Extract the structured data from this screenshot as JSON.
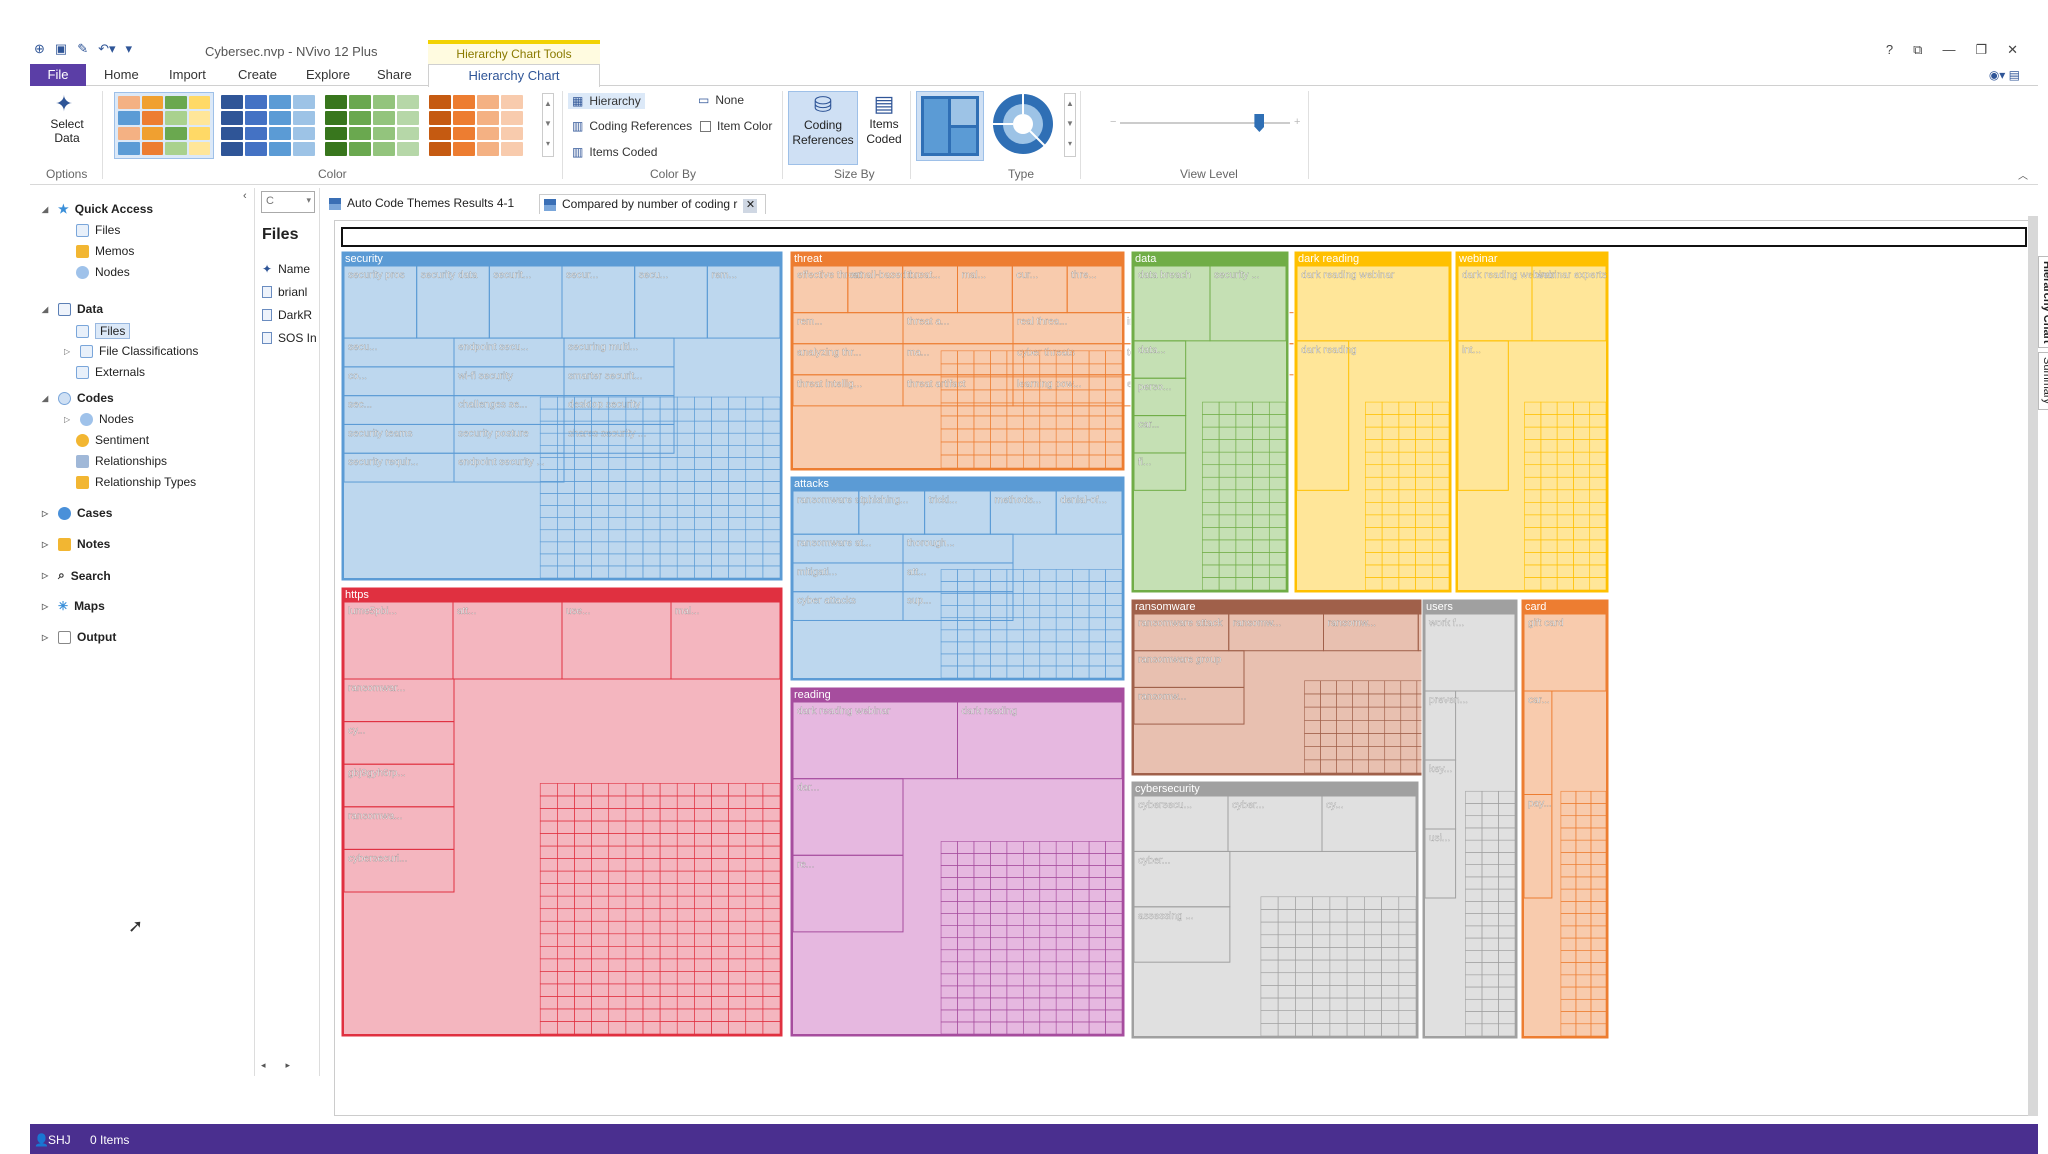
{
  "window": {
    "title": "Cybersec.nvp - NVivo 12 Plus",
    "context_title": "Hierarchy Chart Tools",
    "controls": [
      "?",
      "⧉",
      "—",
      "❐",
      "✕"
    ]
  },
  "ribbon_tabs": {
    "file": "File",
    "tabs": [
      "Home",
      "Import",
      "Create",
      "Explore",
      "Share"
    ],
    "active": "Hierarchy Chart"
  },
  "ribbon": {
    "options": {
      "label": "Select Data",
      "group": "Options"
    },
    "color": {
      "group": "Color",
      "palettes": [
        [
          "#f4b183",
          "#f0a030",
          "#6aa84f",
          "#ffd966",
          "#5b9bd5",
          "#ed7d31",
          "#a9d18e",
          "#ffe699"
        ],
        [
          "#2f5597",
          "#4472c4",
          "#5b9bd5",
          "#9dc3e6"
        ],
        [
          "#38761d",
          "#6aa84f",
          "#93c47d",
          "#b6d7a8"
        ],
        [
          "#c55a11",
          "#ed7d31",
          "#f4b183",
          "#f8cbad"
        ]
      ]
    },
    "color_by": {
      "group": "Color By",
      "hierarchy": "Hierarchy",
      "coding_refs": "Coding References",
      "items_coded": "Items Coded",
      "none": "None",
      "item_color": "Item Color"
    },
    "size_by": {
      "group": "Size By",
      "coding_refs": "Coding References",
      "items_coded": "Items Coded"
    },
    "type": {
      "group": "Type"
    },
    "view_level": {
      "group": "View Level",
      "value": 0.82
    }
  },
  "nav": {
    "quick_access": "Quick Access",
    "qa_items": [
      "Files",
      "Memos",
      "Nodes"
    ],
    "data": "Data",
    "data_items": [
      "Files",
      "File Classifications",
      "Externals"
    ],
    "codes": "Codes",
    "codes_items": [
      "Nodes",
      "Sentiment",
      "Relationships",
      "Relationship Types"
    ],
    "sections": [
      "Cases",
      "Notes",
      "Search",
      "Maps",
      "Output"
    ]
  },
  "files_panel": {
    "combo": "C",
    "title": "Files",
    "header": "Name",
    "rows": [
      "brianl",
      "DarkR",
      "SOS In"
    ]
  },
  "doc_tabs": [
    "Auto Code Themes Results 4-1",
    "Compared by number of coding r"
  ],
  "side_tabs": [
    "Hierarchy Chart",
    "Summary"
  ],
  "status": {
    "user": "SHJ",
    "items": "0 Items"
  },
  "chart_data": {
    "type": "treemap",
    "title": "",
    "tiles": [
      {
        "name": "security",
        "color": "#5b9bd5",
        "fill": "#bdd7ee",
        "children": [
          "security pros",
          "security data",
          "securit...",
          "secur...",
          "secu...",
          "rem...",
          "secu...",
          "co...",
          "sec...",
          "security teams",
          "security requir...",
          "endpoint secu...",
          "wi-fi security",
          "challenges se...",
          "security posture",
          "endpoint security ...",
          "securing multi...",
          "smarter securit...",
          "desktop security",
          "shares security ..."
        ]
      },
      {
        "name": "threat",
        "color": "#ed7d31",
        "fill": "#f8cbad",
        "children": [
          "effective threat",
          "email-based t...",
          "threat...",
          "mal...",
          "cur...",
          "thre...",
          "rem...",
          "analyzing thr...",
          "threat intellig...",
          "threat a...",
          "ma...",
          "threat artifact",
          "real threa...",
          "cyber threats",
          "learning pow...",
          "internet t...",
          "top threats",
          "external thre...",
          "security t...",
          "online t..."
        ]
      },
      {
        "name": "data",
        "color": "#70ad47",
        "fill": "#c5e0b4",
        "children": [
          "data breach",
          "security ...",
          "data...",
          "perso...",
          "car...",
          "fi..."
        ]
      },
      {
        "name": "dark reading",
        "color": "#ffc000",
        "fill": "#ffe699",
        "children": [
          "dark reading webinar",
          "dark reading"
        ]
      },
      {
        "name": "webinar",
        "color": "#ffc000",
        "fill": "#ffe699",
        "children": [
          "dark reading webinar",
          "webinar experts",
          "int..."
        ]
      },
      {
        "name": "attacks",
        "color": "#5b9bd5",
        "fill": "#bdd7ee",
        "children": [
          "ransomware at...",
          "phishing...",
          "tricki...",
          "methods...",
          "denial-of...",
          "ransomware at...",
          "mitigati...",
          "cyber attacks",
          "thorough...",
          "att...",
          "sup..."
        ]
      },
      {
        "name": "https",
        "color": "#e03040",
        "fill": "#f4b6bf",
        "children": [
          "lume5pbi...",
          "att...",
          "use...",
          "mal...",
          "ransomwar...",
          "cy...",
          "gbj9gyh6rp...",
          "ransomwa...",
          "cybersecuri..."
        ]
      },
      {
        "name": "reading",
        "color": "#a64d9e",
        "fill": "#e6b8e0",
        "children": [
          "dark reading webinar",
          "dark reading",
          "dar...",
          "re..."
        ]
      },
      {
        "name": "ransomware",
        "color": "#a0604a",
        "fill": "#e8c0b0",
        "children": [
          "ransomware attack",
          "ransomw...",
          "ransomw...",
          "ransom...",
          "ransomware group",
          "ransomw..."
        ]
      },
      {
        "name": "users",
        "color": "#a0a0a0",
        "fill": "#e0e0e0",
        "children": [
          "work f...",
          "preven...",
          "key...",
          "usi..."
        ]
      },
      {
        "name": "card",
        "color": "#ed7d31",
        "fill": "#f8cbad",
        "children": [
          "gift card",
          "car...",
          "pay..."
        ]
      },
      {
        "name": "cybersecurity",
        "color": "#a0a0a0",
        "fill": "#e0e0e0",
        "children": [
          "cybersecu...",
          "cyber...",
          "cy...",
          "cyber...",
          "assessing ..."
        ]
      }
    ]
  }
}
